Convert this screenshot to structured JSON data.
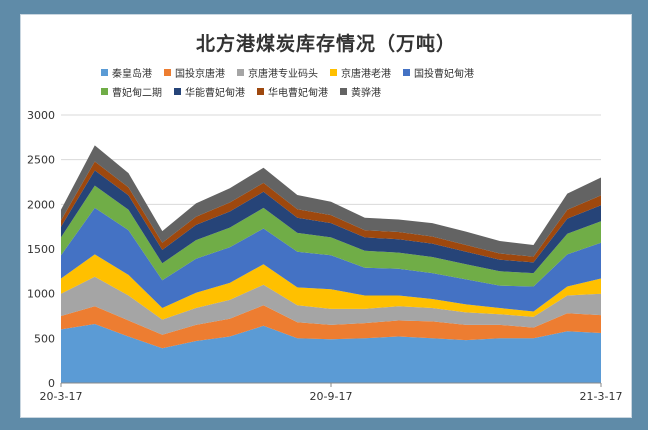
{
  "chart_data": {
    "type": "area",
    "stacked": true,
    "title": "北方港煤炭库存情况（万吨）",
    "xlabel": "",
    "ylabel": "",
    "ylim": [
      0,
      3000
    ],
    "yticks": [
      "0",
      "500",
      "1000",
      "1500",
      "2000",
      "2500",
      "3000"
    ],
    "xtick_labels": [
      "20-3-17",
      "20-9-17",
      "21-3-17"
    ],
    "grid": true,
    "x": [
      "20-3-17",
      "20-4-8",
      "20-4-30",
      "20-5-22",
      "20-6-13",
      "20-7-5",
      "20-7-27",
      "20-8-18",
      "20-9-9",
      "20-10-1",
      "20-10-23",
      "20-11-14",
      "20-12-6",
      "20-12-28",
      "21-1-19",
      "21-2-10",
      "21-3-17"
    ],
    "series": [
      {
        "name": "秦皇岛港",
        "color": "#5b9bd5",
        "values": [
          600,
          660,
          520,
          390,
          470,
          520,
          640,
          500,
          490,
          500,
          520,
          500,
          480,
          500,
          500,
          580,
          560
        ]
      },
      {
        "name": "国投京唐港",
        "color": "#ed7d31",
        "values": [
          150,
          200,
          180,
          150,
          180,
          200,
          230,
          180,
          160,
          170,
          180,
          190,
          170,
          150,
          120,
          200,
          200
        ]
      },
      {
        "name": "京唐港专业码头",
        "color": "#a5a5a5",
        "values": [
          250,
          330,
          280,
          170,
          190,
          210,
          230,
          190,
          180,
          160,
          160,
          150,
          140,
          120,
          120,
          200,
          240
        ]
      },
      {
        "name": "京唐港老港",
        "color": "#ffc000",
        "values": [
          170,
          250,
          230,
          130,
          170,
          190,
          230,
          200,
          220,
          150,
          120,
          100,
          90,
          70,
          60,
          100,
          170
        ]
      },
      {
        "name": "国投曹妃甸港",
        "color": "#4472c4",
        "values": [
          260,
          520,
          500,
          310,
          380,
          400,
          400,
          400,
          380,
          310,
          300,
          290,
          280,
          250,
          280,
          360,
          400
        ]
      },
      {
        "name": "曹妃甸二期",
        "color": "#70ad47",
        "values": [
          200,
          250,
          230,
          190,
          210,
          220,
          230,
          210,
          200,
          190,
          180,
          180,
          170,
          160,
          150,
          230,
          240
        ]
      },
      {
        "name": "华能曹妃甸港",
        "color": "#264478",
        "values": [
          120,
          170,
          160,
          150,
          170,
          180,
          180,
          170,
          160,
          150,
          150,
          150,
          140,
          130,
          120,
          170,
          180
        ]
      },
      {
        "name": "华电曹妃甸港",
        "color": "#9e480e",
        "values": [
          70,
          100,
          90,
          80,
          90,
          100,
          100,
          95,
          90,
          80,
          80,
          80,
          75,
          70,
          65,
          100,
          110
        ]
      },
      {
        "name": "黄骅港",
        "color": "#636363",
        "values": [
          120,
          180,
          160,
          130,
          150,
          160,
          170,
          160,
          150,
          140,
          140,
          150,
          150,
          140,
          130,
          180,
          200
        ]
      }
    ]
  }
}
